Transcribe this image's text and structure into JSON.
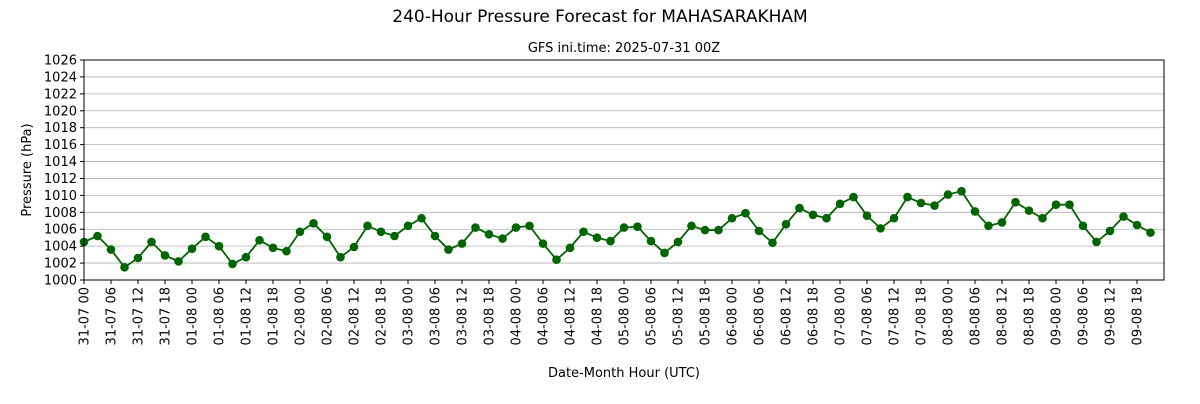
{
  "chart_data": {
    "type": "line",
    "title": "240-Hour Pressure Forecast for MAHASARAKHAM",
    "subtitle": "GFS ini.time: 2025-07-31 00Z",
    "xlabel": "Date-Month Hour (UTC)",
    "ylabel": "Pressure (hPa)",
    "ylim": [
      1000,
      1026
    ],
    "y_ticks": [
      1000,
      1002,
      1004,
      1006,
      1008,
      1010,
      1012,
      1014,
      1016,
      1018,
      1020,
      1022,
      1024,
      1026
    ],
    "x_tick_labels": [
      "31-07 00",
      "31-07 06",
      "31-07 12",
      "31-07 18",
      "01-08 00",
      "01-08 06",
      "01-08 12",
      "01-08 18",
      "02-08 00",
      "02-08 06",
      "02-08 12",
      "02-08 18",
      "03-08 00",
      "03-08 06",
      "03-08 12",
      "03-08 18",
      "04-08 00",
      "04-08 06",
      "04-08 12",
      "04-08 18",
      "05-08 00",
      "05-08 06",
      "05-08 12",
      "05-08 18",
      "06-08 00",
      "06-08 06",
      "06-08 12",
      "06-08 18",
      "07-08 00",
      "07-08 06",
      "07-08 12",
      "07-08 18",
      "08-08 00",
      "08-08 06",
      "08-08 12",
      "08-08 18",
      "09-08 00",
      "09-08 06",
      "09-08 12",
      "09-08 18"
    ],
    "x_step_hours": 3,
    "grid": "horizontal",
    "line_color": "#006400",
    "marker_color": "#006400",
    "series": [
      {
        "values": [
          1004.5,
          1005.2,
          1003.6,
          1001.5,
          1002.6,
          1004.5,
          1002.9,
          1002.2,
          1003.7,
          1005.1,
          1004.0,
          1001.9,
          1002.7,
          1004.7,
          1003.8,
          1003.4,
          1005.7,
          1006.7,
          1005.1,
          1002.7,
          1003.9,
          1006.4,
          1005.7,
          1005.2,
          1006.4,
          1007.3,
          1005.2,
          1003.6,
          1004.3,
          1006.2,
          1005.4,
          1004.9,
          1006.2,
          1006.4,
          1004.3,
          1002.4,
          1003.8,
          1005.7,
          1005.0,
          1004.6,
          1006.2,
          1006.3,
          1004.6,
          1003.2,
          1004.5,
          1006.4,
          1005.9,
          1005.9,
          1007.3,
          1007.9,
          1005.8,
          1004.4,
          1006.6,
          1008.5,
          1007.7,
          1007.3,
          1009.0,
          1009.8,
          1007.6,
          1006.1,
          1007.3,
          1009.8,
          1009.1,
          1008.8,
          1010.1,
          1010.5,
          1008.1,
          1006.4,
          1006.8,
          1009.2,
          1008.2,
          1007.3,
          1008.9,
          1008.9,
          1006.4,
          1004.5,
          1005.8,
          1007.5,
          1006.5,
          1005.6
        ]
      }
    ]
  }
}
